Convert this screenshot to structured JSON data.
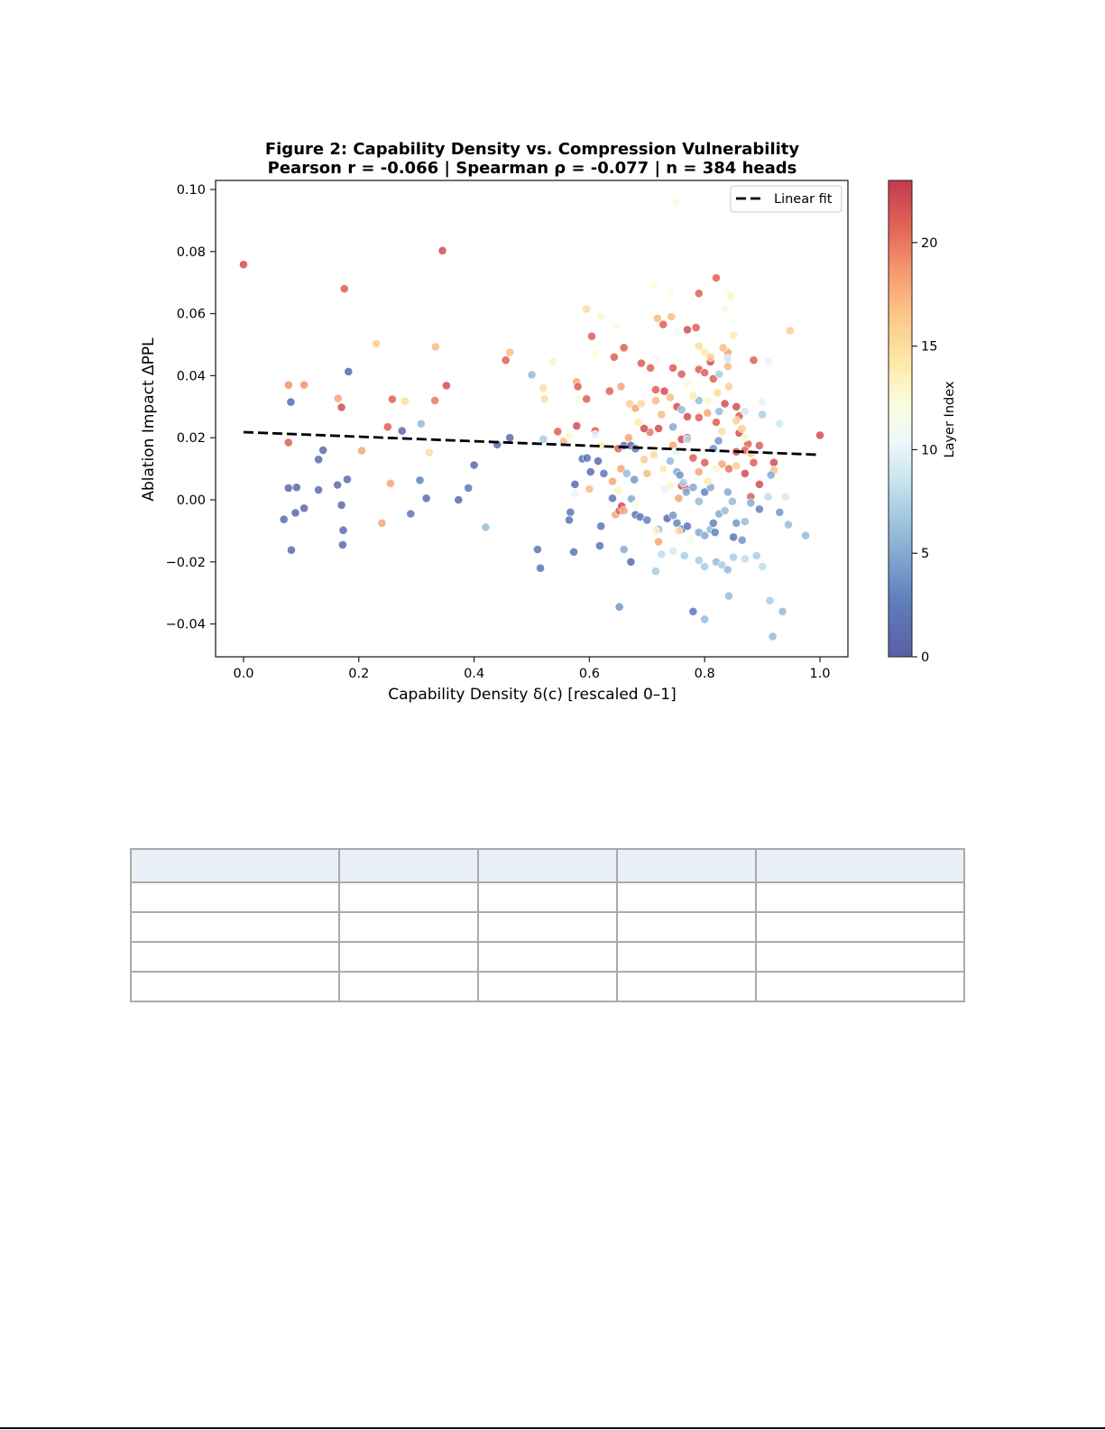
{
  "chart_data": {
    "type": "scatter",
    "title": "Figure 2: Capability Density vs. Compression Vulnerability",
    "subtitle": "Pearson r = -0.066  |  Spearman ρ = -0.077  |  n = 384 heads",
    "xlabel": "Capability Density δ(c)  [rescaled 0–1]",
    "ylabel": "Ablation Impact  ΔPPL",
    "xlim": [
      -0.05,
      1.05
    ],
    "ylim": [
      -0.05,
      0.103
    ],
    "xticks": [
      0.0,
      0.2,
      0.4,
      0.6,
      0.8,
      1.0
    ],
    "xtick_labels": [
      "0.0",
      "0.2",
      "0.4",
      "0.6",
      "0.8",
      "1.0"
    ],
    "yticks": [
      -0.04,
      -0.02,
      0.0,
      0.02,
      0.04,
      0.06,
      0.08,
      0.1
    ],
    "ytick_labels": [
      "−0.04",
      "−0.02",
      "0.00",
      "0.02",
      "0.04",
      "0.06",
      "0.08",
      "0.10"
    ],
    "grid": false,
    "legend": {
      "position": "upper right",
      "entries": [
        {
          "label": "Linear fit",
          "style": "dashed",
          "color": "#000000"
        }
      ]
    },
    "colorbar": {
      "label": "Layer Index",
      "range": [
        0,
        23
      ],
      "ticks": [
        0,
        5,
        10,
        15,
        20
      ],
      "colormap": "RdYlBu_r"
    },
    "fit_line": {
      "x": [
        0.0,
        1.0
      ],
      "y": [
        0.0218,
        0.0145
      ]
    },
    "n_total": 384,
    "points_note": "representative subset of points read from the plot: [x, y, layer]",
    "points": [
      [
        0.0,
        0.0758,
        22
      ],
      [
        0.345,
        0.0803,
        22
      ],
      [
        0.175,
        0.068,
        21
      ],
      [
        0.23,
        0.0503,
        16
      ],
      [
        0.333,
        0.0493,
        17
      ],
      [
        0.078,
        0.037,
        19
      ],
      [
        0.105,
        0.037,
        19
      ],
      [
        0.182,
        0.0413,
        1
      ],
      [
        0.082,
        0.0315,
        1
      ],
      [
        0.164,
        0.0327,
        18
      ],
      [
        0.17,
        0.0298,
        22
      ],
      [
        0.258,
        0.0324,
        21
      ],
      [
        0.28,
        0.0318,
        15
      ],
      [
        0.332,
        0.032,
        20
      ],
      [
        0.352,
        0.0368,
        22
      ],
      [
        0.25,
        0.0235,
        21
      ],
      [
        0.275,
        0.0222,
        1
      ],
      [
        0.308,
        0.0245,
        6
      ],
      [
        0.078,
        0.0185,
        21
      ],
      [
        0.138,
        0.016,
        1
      ],
      [
        0.13,
        0.013,
        1
      ],
      [
        0.205,
        0.0158,
        18
      ],
      [
        0.322,
        0.0152,
        15
      ],
      [
        0.4,
        0.0112,
        1
      ],
      [
        0.078,
        0.0038,
        1
      ],
      [
        0.092,
        0.004,
        1
      ],
      [
        0.13,
        0.0032,
        1
      ],
      [
        0.163,
        0.0048,
        1
      ],
      [
        0.18,
        0.0066,
        1
      ],
      [
        0.255,
        0.0053,
        18
      ],
      [
        0.306,
        0.0063,
        3
      ],
      [
        0.317,
        0.0005,
        1
      ],
      [
        0.373,
        0.0,
        1
      ],
      [
        0.39,
        0.0038,
        2
      ],
      [
        0.07,
        -0.0063,
        1
      ],
      [
        0.09,
        -0.0042,
        1
      ],
      [
        0.105,
        -0.0027,
        1
      ],
      [
        0.17,
        -0.0017,
        1
      ],
      [
        0.24,
        -0.0075,
        18
      ],
      [
        0.29,
        -0.0045,
        2
      ],
      [
        0.42,
        -0.0088,
        6
      ],
      [
        0.173,
        -0.0098,
        1
      ],
      [
        0.172,
        -0.0145,
        1
      ],
      [
        0.083,
        -0.0162,
        1
      ],
      [
        0.44,
        0.0178,
        1
      ],
      [
        0.462,
        0.02,
        1
      ],
      [
        0.455,
        0.045,
        21
      ],
      [
        0.462,
        0.0475,
        17
      ],
      [
        0.5,
        0.0403,
        6
      ],
      [
        0.52,
        0.036,
        15
      ],
      [
        0.522,
        0.0325,
        15
      ],
      [
        0.545,
        0.022,
        21
      ],
      [
        0.555,
        0.0188,
        17
      ],
      [
        0.565,
        0.0205,
        13
      ],
      [
        0.52,
        0.0195,
        7
      ],
      [
        0.537,
        0.0445,
        13
      ],
      [
        0.578,
        0.038,
        18
      ],
      [
        0.58,
        0.0365,
        21
      ],
      [
        0.595,
        0.0615,
        15
      ],
      [
        0.604,
        0.0527,
        21
      ],
      [
        0.61,
        0.047,
        12
      ],
      [
        0.62,
        0.059,
        13
      ],
      [
        0.595,
        0.0325,
        21
      ],
      [
        0.61,
        0.0222,
        21
      ],
      [
        0.578,
        0.0238,
        22
      ],
      [
        0.635,
        0.035,
        21
      ],
      [
        0.643,
        0.046,
        21
      ],
      [
        0.66,
        0.049,
        21
      ],
      [
        0.655,
        0.0365,
        18
      ],
      [
        0.67,
        0.031,
        16
      ],
      [
        0.68,
        0.0295,
        18
      ],
      [
        0.69,
        0.044,
        21
      ],
      [
        0.706,
        0.0425,
        21
      ],
      [
        0.718,
        0.0585,
        17
      ],
      [
        0.728,
        0.0565,
        21
      ],
      [
        0.742,
        0.059,
        17
      ],
      [
        0.753,
        0.054,
        11
      ],
      [
        0.77,
        0.0548,
        22
      ],
      [
        0.785,
        0.0555,
        21
      ],
      [
        0.79,
        0.0665,
        21
      ],
      [
        0.82,
        0.0715,
        21
      ],
      [
        0.838,
        0.067,
        12
      ],
      [
        0.845,
        0.0655,
        13
      ],
      [
        0.85,
        0.053,
        14
      ],
      [
        0.84,
        0.0475,
        18
      ],
      [
        0.885,
        0.045,
        21
      ],
      [
        0.948,
        0.0545,
        16
      ],
      [
        0.81,
        0.0445,
        22
      ],
      [
        0.79,
        0.042,
        21
      ],
      [
        0.8,
        0.041,
        21
      ],
      [
        0.815,
        0.039,
        21
      ],
      [
        0.825,
        0.0405,
        7
      ],
      [
        0.832,
        0.049,
        17
      ],
      [
        0.76,
        0.0405,
        21
      ],
      [
        0.745,
        0.0425,
        21
      ],
      [
        0.73,
        0.035,
        22
      ],
      [
        0.715,
        0.0355,
        21
      ],
      [
        0.74,
        0.033,
        17
      ],
      [
        0.752,
        0.03,
        22
      ],
      [
        0.77,
        0.0268,
        22
      ],
      [
        0.79,
        0.0265,
        21
      ],
      [
        0.805,
        0.028,
        18
      ],
      [
        0.82,
        0.025,
        21
      ],
      [
        0.835,
        0.031,
        22
      ],
      [
        0.855,
        0.03,
        22
      ],
      [
        0.86,
        0.027,
        21
      ],
      [
        0.86,
        0.0215,
        22
      ],
      [
        0.875,
        0.018,
        21
      ],
      [
        0.895,
        0.0175,
        21
      ],
      [
        0.92,
        0.012,
        22
      ],
      [
        1.0,
        0.0208,
        22
      ],
      [
        0.77,
        0.02,
        23
      ],
      [
        0.76,
        0.0195,
        22
      ],
      [
        0.745,
        0.0175,
        18
      ],
      [
        0.72,
        0.023,
        22
      ],
      [
        0.705,
        0.0218,
        20
      ],
      [
        0.695,
        0.023,
        22
      ],
      [
        0.668,
        0.02,
        18
      ],
      [
        0.65,
        0.0165,
        21
      ],
      [
        0.655,
        0.01,
        18
      ],
      [
        0.64,
        0.006,
        18
      ],
      [
        0.645,
        -0.0048,
        18
      ],
      [
        0.652,
        -0.0035,
        21
      ],
      [
        0.656,
        -0.002,
        22
      ],
      [
        0.66,
        -0.0035,
        18
      ],
      [
        0.72,
        -0.0135,
        18
      ],
      [
        0.76,
        0.0045,
        22
      ],
      [
        0.768,
        0.0035,
        21
      ],
      [
        0.755,
        0.0005,
        18
      ],
      [
        0.78,
        0.0135,
        21
      ],
      [
        0.79,
        0.009,
        18
      ],
      [
        0.8,
        0.012,
        21
      ],
      [
        0.83,
        0.0115,
        18
      ],
      [
        0.842,
        0.01,
        20
      ],
      [
        0.87,
        0.0085,
        22
      ],
      [
        0.885,
        0.012,
        21
      ],
      [
        0.895,
        0.005,
        22
      ],
      [
        0.92,
        0.0095,
        17
      ],
      [
        0.855,
        0.0155,
        22
      ],
      [
        0.87,
        0.016,
        21
      ],
      [
        0.88,
        0.001,
        21
      ],
      [
        0.575,
        0.005,
        1
      ],
      [
        0.588,
        0.0132,
        2
      ],
      [
        0.596,
        0.0135,
        2
      ],
      [
        0.615,
        0.0125,
        1
      ],
      [
        0.602,
        0.009,
        1
      ],
      [
        0.625,
        0.0085,
        2
      ],
      [
        0.66,
        0.0175,
        2
      ],
      [
        0.672,
        0.0175,
        1
      ],
      [
        0.68,
        0.0165,
        2
      ],
      [
        0.665,
        0.0085,
        6
      ],
      [
        0.678,
        0.0065,
        4
      ],
      [
        0.673,
        0.0003,
        5
      ],
      [
        0.64,
        0.0005,
        2
      ],
      [
        0.62,
        -0.0085,
        2
      ],
      [
        0.567,
        -0.004,
        2
      ],
      [
        0.565,
        -0.0065,
        2
      ],
      [
        0.573,
        -0.0168,
        2
      ],
      [
        0.51,
        -0.016,
        2
      ],
      [
        0.515,
        -0.022,
        2
      ],
      [
        0.618,
        -0.0148,
        2
      ],
      [
        0.66,
        -0.016,
        5
      ],
      [
        0.672,
        -0.02,
        1
      ],
      [
        0.652,
        -0.0345,
        4
      ],
      [
        0.68,
        -0.0048,
        2
      ],
      [
        0.688,
        -0.0055,
        2
      ],
      [
        0.7,
        -0.0065,
        3
      ],
      [
        0.72,
        -0.0095,
        6
      ],
      [
        0.735,
        -0.006,
        1
      ],
      [
        0.745,
        -0.005,
        4
      ],
      [
        0.752,
        -0.0075,
        3
      ],
      [
        0.76,
        -0.0095,
        2
      ],
      [
        0.77,
        -0.0085,
        2
      ],
      [
        0.79,
        -0.0105,
        5
      ],
      [
        0.8,
        -0.0115,
        5
      ],
      [
        0.81,
        -0.0095,
        6
      ],
      [
        0.815,
        -0.0075,
        3
      ],
      [
        0.818,
        -0.0105,
        3
      ],
      [
        0.825,
        -0.0045,
        5
      ],
      [
        0.835,
        -0.0035,
        6
      ],
      [
        0.85,
        -0.012,
        2
      ],
      [
        0.855,
        -0.0075,
        4
      ],
      [
        0.865,
        -0.013,
        4
      ],
      [
        0.87,
        -0.007,
        6
      ],
      [
        0.88,
        -0.001,
        5
      ],
      [
        0.895,
        -0.003,
        3
      ],
      [
        0.91,
        0.001,
        8
      ],
      [
        0.915,
        0.008,
        5
      ],
      [
        0.93,
        -0.004,
        4
      ],
      [
        0.945,
        -0.008,
        6
      ],
      [
        0.975,
        -0.0115,
        6
      ],
      [
        0.79,
        -0.0195,
        7
      ],
      [
        0.8,
        -0.0215,
        7
      ],
      [
        0.82,
        -0.02,
        6
      ],
      [
        0.83,
        -0.021,
        7
      ],
      [
        0.84,
        -0.0225,
        6
      ],
      [
        0.85,
        -0.0185,
        7
      ],
      [
        0.87,
        -0.019,
        8
      ],
      [
        0.89,
        -0.018,
        7
      ],
      [
        0.9,
        -0.0215,
        8
      ],
      [
        0.725,
        -0.0175,
        8
      ],
      [
        0.715,
        -0.023,
        7
      ],
      [
        0.745,
        -0.0165,
        9
      ],
      [
        0.765,
        -0.018,
        7
      ],
      [
        0.842,
        -0.031,
        6
      ],
      [
        0.78,
        -0.036,
        2
      ],
      [
        0.8,
        -0.0385,
        6
      ],
      [
        0.913,
        -0.0325,
        7
      ],
      [
        0.935,
        -0.036,
        6
      ],
      [
        0.918,
        -0.044,
        6
      ],
      [
        0.76,
        0.029,
        6
      ],
      [
        0.745,
        0.0235,
        5
      ],
      [
        0.74,
        0.0125,
        6
      ],
      [
        0.752,
        0.009,
        5
      ],
      [
        0.757,
        0.008,
        4
      ],
      [
        0.763,
        0.0055,
        7
      ],
      [
        0.768,
        0.0025,
        5
      ],
      [
        0.78,
        0.004,
        5
      ],
      [
        0.79,
        -0.0005,
        6
      ],
      [
        0.8,
        0.0025,
        3
      ],
      [
        0.81,
        0.004,
        5
      ],
      [
        0.815,
        0.0165,
        4
      ],
      [
        0.824,
        0.019,
        4
      ],
      [
        0.84,
        0.0025,
        5
      ],
      [
        0.848,
        -0.0005,
        6
      ],
      [
        0.825,
        0.0285,
        6
      ],
      [
        0.79,
        0.032,
        6
      ],
      [
        0.77,
        0.0195,
        8
      ],
      [
        0.84,
        0.0455,
        9
      ],
      [
        0.9,
        0.0315,
        10
      ],
      [
        0.91,
        0.0445,
        10
      ],
      [
        0.93,
        0.0245,
        9
      ],
      [
        0.94,
        0.001,
        9
      ],
      [
        0.9,
        0.0275,
        7
      ],
      [
        0.87,
        0.0285,
        9
      ],
      [
        0.75,
        0.096,
        12
      ],
      [
        0.712,
        0.069,
        12
      ],
      [
        0.74,
        0.067,
        12
      ],
      [
        0.835,
        0.0615,
        12
      ],
      [
        0.648,
        0.056,
        12
      ],
      [
        0.58,
        0.0325,
        12
      ],
      [
        0.61,
        0.021,
        10
      ],
      [
        0.54,
        0.0185,
        11
      ],
      [
        0.72,
        0.045,
        11
      ],
      [
        0.77,
        0.0375,
        12
      ],
      [
        0.78,
        0.0335,
        14
      ],
      [
        0.805,
        0.032,
        13
      ],
      [
        0.822,
        0.0345,
        15
      ],
      [
        0.842,
        0.0365,
        16
      ],
      [
        0.79,
        0.0495,
        15
      ],
      [
        0.8,
        0.0475,
        14
      ],
      [
        0.81,
        0.046,
        16
      ],
      [
        0.84,
        0.043,
        17
      ],
      [
        0.855,
        0.0255,
        16
      ],
      [
        0.865,
        0.023,
        16
      ],
      [
        0.83,
        0.022,
        15
      ],
      [
        0.87,
        0.02,
        13
      ],
      [
        0.88,
        0.015,
        16
      ],
      [
        0.855,
        0.011,
        16
      ],
      [
        0.82,
        0.01,
        13
      ],
      [
        0.805,
        0.006,
        14
      ],
      [
        0.74,
        0.0045,
        13
      ],
      [
        0.728,
        0.01,
        14
      ],
      [
        0.712,
        0.0145,
        15
      ],
      [
        0.695,
        0.013,
        16
      ],
      [
        0.685,
        0.025,
        14
      ],
      [
        0.69,
        0.031,
        15
      ],
      [
        0.715,
        0.032,
        17
      ],
      [
        0.725,
        0.0275,
        17
      ],
      [
        0.7,
        0.0085,
        17
      ],
      [
        0.65,
        0.003,
        13
      ],
      [
        0.6,
        0.0035,
        17
      ],
      [
        0.575,
        0.002,
        10
      ],
      [
        0.62,
        0.0175,
        14
      ],
      [
        0.68,
        -0.0015,
        12
      ],
      [
        0.715,
        -0.01,
        13
      ],
      [
        0.755,
        -0.01,
        15
      ],
      [
        0.775,
        -0.013,
        11
      ],
      [
        0.73,
        0.0035,
        10
      ],
      [
        0.75,
        0.0155,
        10
      ]
    ]
  },
  "table": {
    "header": [
      "",
      "",
      "",
      "",
      ""
    ],
    "rows": [
      [
        "",
        "",
        "",
        "",
        ""
      ],
      [
        "",
        "",
        "",
        "",
        ""
      ],
      [
        "",
        "",
        "",
        "",
        ""
      ],
      [
        "",
        "",
        "",
        "",
        ""
      ]
    ]
  }
}
